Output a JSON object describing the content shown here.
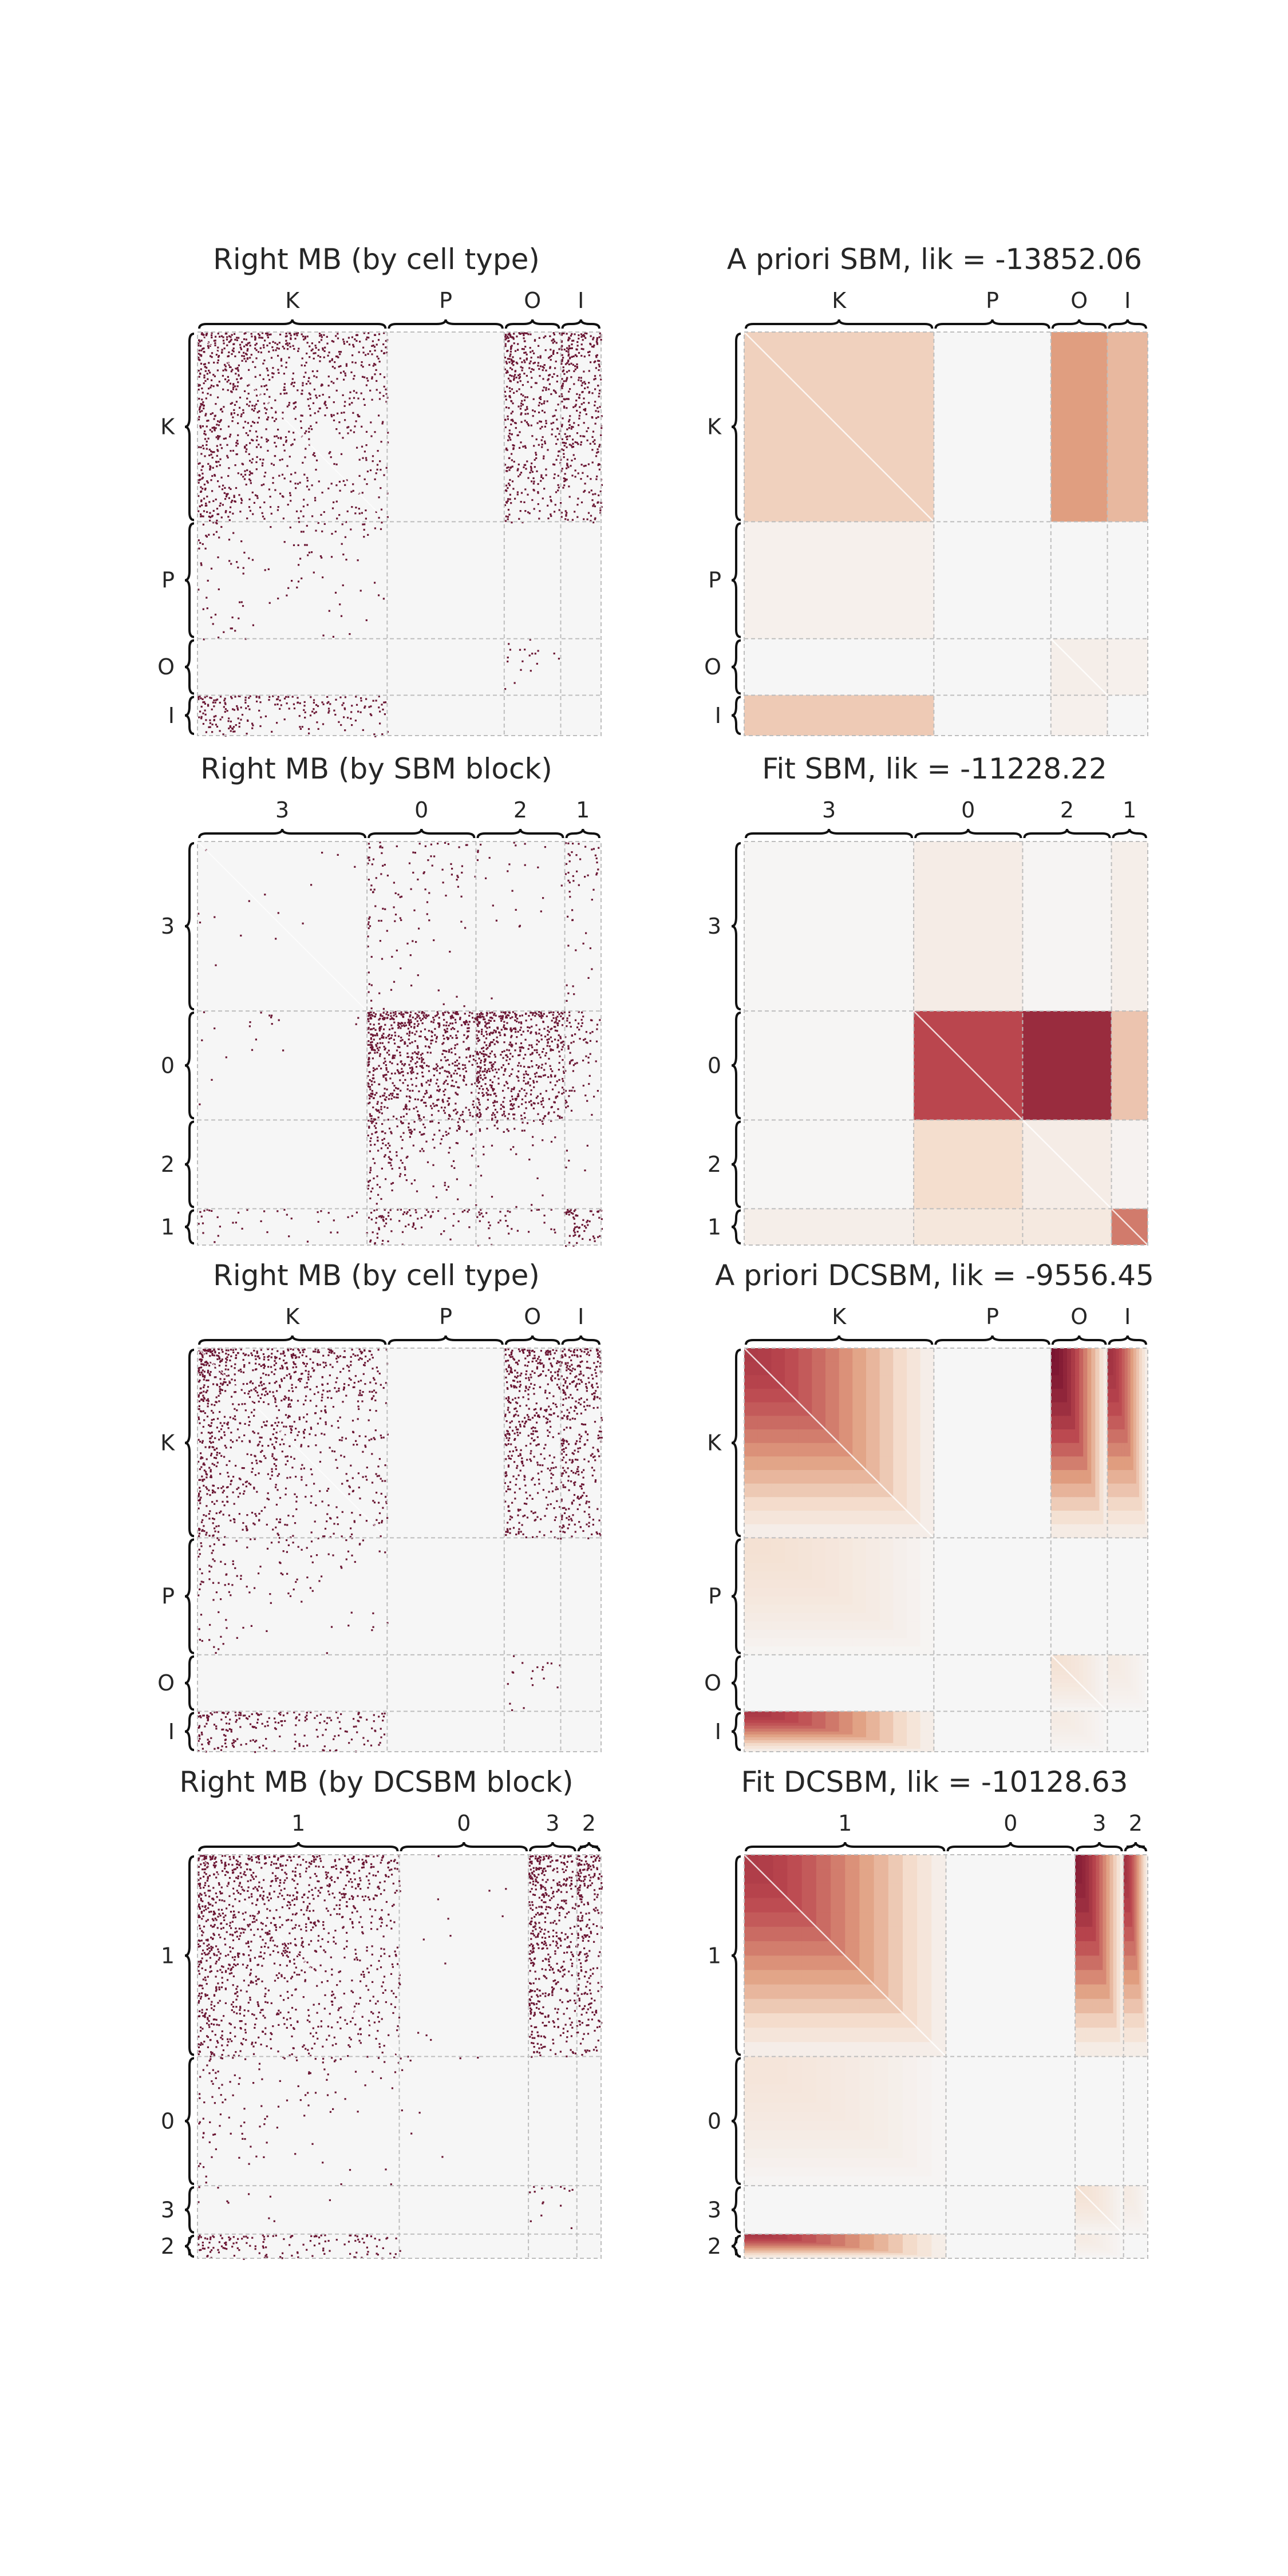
{
  "colors": {
    "panel_bg": "#f6f6f6",
    "edge": "#6b1734",
    "grid": "#bdbdbd",
    "brace": "#111111",
    "text": "#262626"
  },
  "chart_data": [
    {
      "type": "heatmap",
      "kind": "observed",
      "title": "Right MB (by cell type)",
      "blocks": [
        "K",
        "P",
        "O",
        "I"
      ],
      "block_fraction": [
        0.47,
        0.29,
        0.14,
        0.1
      ],
      "grid": true,
      "density": [
        [
          0.46,
          0.0,
          0.62,
          0.66
        ],
        [
          0.1,
          0.0,
          0.0,
          0.0
        ],
        [
          0.0,
          0.0,
          0.1,
          0.0
        ],
        [
          0.44,
          0.0,
          0.0,
          0.0
        ]
      ]
    },
    {
      "type": "heatmap",
      "kind": "model",
      "title": "A priori SBM, lik = -13852.06",
      "blocks": [
        "K",
        "P",
        "O",
        "I"
      ],
      "block_fraction": [
        0.47,
        0.29,
        0.14,
        0.1
      ],
      "grid": true,
      "p_matrix": [
        [
          0.3,
          0.0,
          0.5,
          0.4
        ],
        [
          0.06,
          0.0,
          0.0,
          0.0
        ],
        [
          0.0,
          0.0,
          0.08,
          0.06
        ],
        [
          0.33,
          0.0,
          0.06,
          0.0
        ]
      ]
    },
    {
      "type": "heatmap",
      "kind": "observed",
      "title": "Right MB (by SBM block)",
      "blocks": [
        "3",
        "0",
        "2",
        "1"
      ],
      "block_fraction": [
        0.42,
        0.27,
        0.22,
        0.09
      ],
      "grid": true,
      "density": [
        [
          0.01,
          0.12,
          0.03,
          0.14
        ],
        [
          0.02,
          0.85,
          0.88,
          0.3
        ],
        [
          0.0,
          0.28,
          0.08,
          0.02
        ],
        [
          0.1,
          0.32,
          0.18,
          0.68
        ]
      ]
    },
    {
      "type": "heatmap",
      "kind": "model",
      "title": "Fit SBM, lik = -11228.22",
      "blocks": [
        "3",
        "0",
        "2",
        "1"
      ],
      "block_fraction": [
        0.42,
        0.27,
        0.22,
        0.09
      ],
      "grid": true,
      "p_matrix": [
        [
          0.01,
          0.1,
          0.02,
          0.08
        ],
        [
          0.01,
          0.75,
          0.88,
          0.35
        ],
        [
          0.01,
          0.25,
          0.1,
          0.04
        ],
        [
          0.08,
          0.16,
          0.14,
          0.6
        ]
      ]
    },
    {
      "type": "heatmap",
      "kind": "observed",
      "title": "Right MB (by cell type)",
      "blocks": [
        "K",
        "P",
        "O",
        "I"
      ],
      "block_fraction": [
        0.47,
        0.29,
        0.14,
        0.1
      ],
      "grid": true,
      "density": [
        [
          0.46,
          0.0,
          0.62,
          0.66
        ],
        [
          0.1,
          0.0,
          0.0,
          0.0
        ],
        [
          0.0,
          0.0,
          0.1,
          0.0
        ],
        [
          0.44,
          0.0,
          0.0,
          0.0
        ]
      ]
    },
    {
      "type": "heatmap",
      "kind": "model",
      "title": "A priori DCSBM, lik = -9556.45",
      "blocks": [
        "K",
        "P",
        "O",
        "I"
      ],
      "block_fraction": [
        0.47,
        0.29,
        0.14,
        0.1
      ],
      "grid": true,
      "p_matrix": [
        [
          0.8,
          0.0,
          1.0,
          0.85
        ],
        [
          0.22,
          0.0,
          0.0,
          0.0
        ],
        [
          0.0,
          0.0,
          0.22,
          0.12
        ],
        [
          0.82,
          0.0,
          0.12,
          0.0
        ]
      ]
    },
    {
      "type": "heatmap",
      "kind": "observed",
      "title": "Right MB (by DCSBM block)",
      "blocks": [
        "1",
        "0",
        "3",
        "2"
      ],
      "block_fraction": [
        0.5,
        0.32,
        0.12,
        0.06
      ],
      "grid": true,
      "density": [
        [
          0.5,
          0.01,
          0.72,
          0.7
        ],
        [
          0.08,
          0.01,
          0.0,
          0.0
        ],
        [
          0.02,
          0.0,
          0.1,
          0.0
        ],
        [
          0.45,
          0.0,
          0.0,
          0.0
        ]
      ]
    },
    {
      "type": "heatmap",
      "kind": "model",
      "title": "Fit DCSBM, lik = -10128.63",
      "blocks": [
        "1",
        "0",
        "3",
        "2"
      ],
      "block_fraction": [
        0.5,
        0.32,
        0.12,
        0.06
      ],
      "grid": true,
      "p_matrix": [
        [
          0.8,
          0.0,
          0.95,
          0.85
        ],
        [
          0.18,
          0.0,
          0.0,
          0.0
        ],
        [
          0.0,
          0.0,
          0.22,
          0.12
        ],
        [
          0.82,
          0.0,
          0.12,
          0.0
        ]
      ]
    }
  ]
}
